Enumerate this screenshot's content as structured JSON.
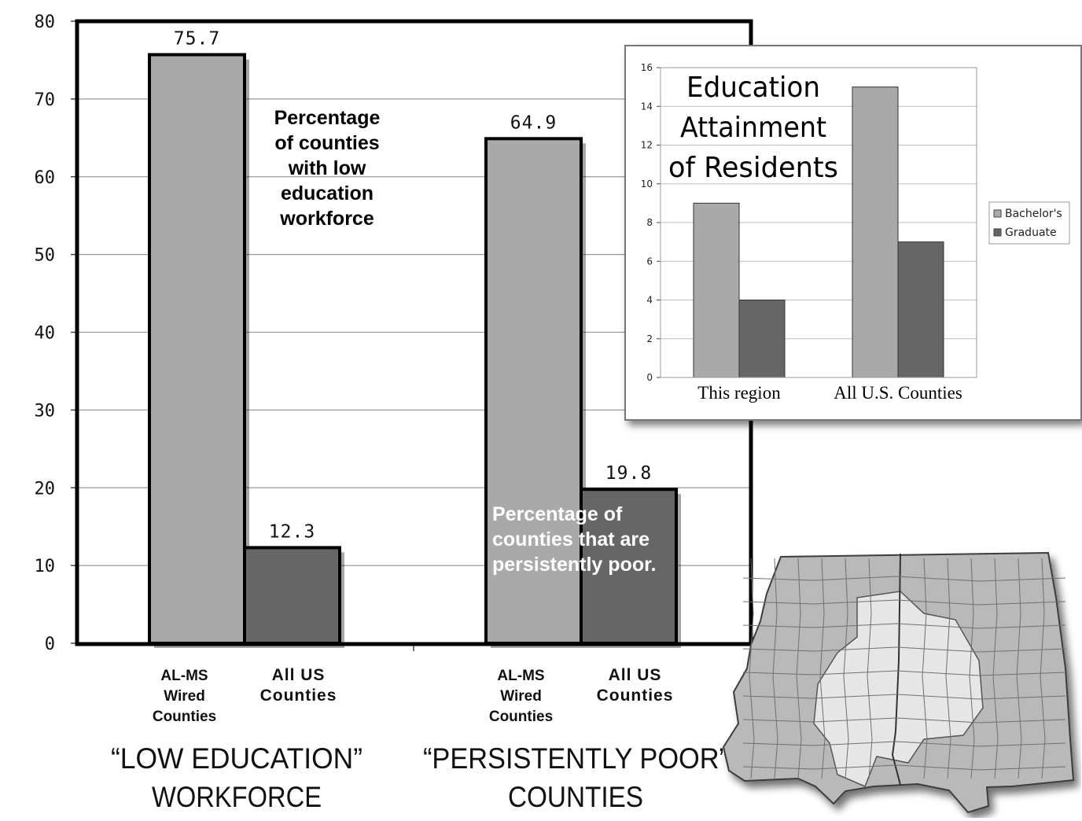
{
  "chart_data": [
    {
      "type": "bar",
      "ylim": [
        0,
        80
      ],
      "yticks": [
        0,
        10,
        20,
        30,
        40,
        50,
        60,
        70,
        80
      ],
      "grid": true,
      "groups": [
        {
          "title_line1": "“LOW EDUCATION”",
          "title_line2": "WORKFORCE",
          "annotation": [
            "Percentage",
            "of counties",
            "with low",
            "education",
            "workforce"
          ],
          "bars": [
            {
              "label": [
                "AL-MS",
                "Wired",
                "Counties"
              ],
              "value": 75.7,
              "value_label": "75.7"
            },
            {
              "label": [
                "All US",
                "Counties"
              ],
              "value": 12.3,
              "value_label": "12.3"
            }
          ]
        },
        {
          "title_line1": "“PERSISTENTLY POOR”",
          "title_line2": "COUNTIES",
          "annotation": [
            "Percentage of",
            "counties that are",
            "persistently poor."
          ],
          "bars": [
            {
              "label": [
                "AL-MS",
                "Wired",
                "Counties"
              ],
              "value": 64.9,
              "value_label": "64.9"
            },
            {
              "label": [
                "All US",
                "Counties"
              ],
              "value": 19.8,
              "value_label": "19.8"
            }
          ]
        }
      ],
      "colors": {
        "light_bar": "#a9a9a9",
        "dark_bar": "#666666"
      }
    },
    {
      "type": "bar",
      "title": [
        "Education",
        "Attainment",
        "of Residents"
      ],
      "categories": [
        "This region",
        "All U.S. Counties"
      ],
      "series": [
        {
          "name": "Bachelor's",
          "values": [
            9,
            15
          ],
          "color": "#a9a9a9"
        },
        {
          "name": "Graduate",
          "values": [
            4,
            7
          ],
          "color": "#666666"
        }
      ],
      "ylim": [
        0,
        16
      ],
      "yticks": [
        0,
        2,
        4,
        6,
        8,
        10,
        12,
        14,
        16
      ],
      "grid": true,
      "legend": "right"
    }
  ]
}
